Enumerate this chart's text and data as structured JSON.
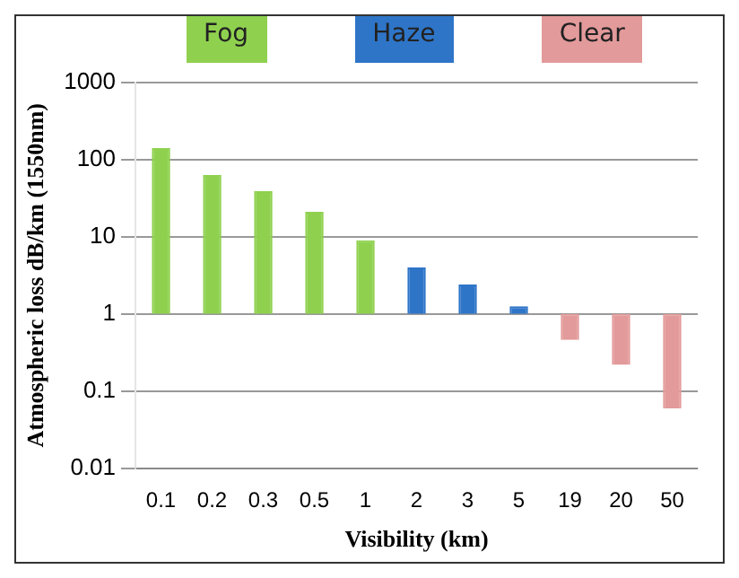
{
  "chart_data": {
    "type": "bar",
    "xlabel": "Visibility (km)",
    "ylabel": "Atmospheric loss dB/km (1550nm)",
    "categories": [
      "0.1",
      "0.2",
      "0.3",
      "0.5",
      "1",
      "2",
      "3",
      "5",
      "19",
      "20",
      "50"
    ],
    "series": [
      {
        "name": "Fog",
        "color": "#8fd14f",
        "base": [
          1,
          1,
          1,
          1,
          1,
          null,
          null,
          null,
          null,
          null,
          null
        ],
        "values": [
          139,
          62,
          38,
          20,
          8,
          null,
          null,
          null,
          null,
          null,
          null
        ]
      },
      {
        "name": "Haze",
        "color": "#2e75c8",
        "base": [
          null,
          null,
          null,
          null,
          null,
          1,
          1,
          1,
          null,
          null,
          null
        ],
        "values": [
          null,
          null,
          null,
          null,
          null,
          3,
          1.4,
          0.26,
          null,
          null,
          null
        ]
      },
      {
        "name": "Clear",
        "color": "#e39a9a",
        "base": [
          null,
          null,
          null,
          null,
          null,
          null,
          null,
          null,
          1,
          1,
          1
        ],
        "values": [
          null,
          null,
          null,
          null,
          null,
          null,
          null,
          null,
          -0.54,
          -0.78,
          -0.94
        ]
      }
    ],
    "log": "y",
    "ylim": [
      0.01,
      1000
    ],
    "yticks": [
      0.01,
      0.1,
      1,
      10,
      100,
      1000
    ],
    "grid": "y",
    "legend": "top"
  }
}
